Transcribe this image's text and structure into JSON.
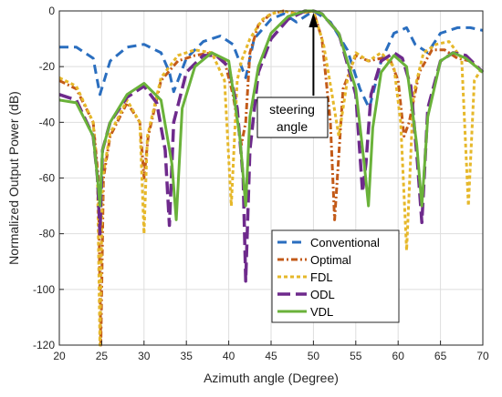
{
  "chart_data": {
    "type": "line",
    "title": "",
    "xlabel": "Azimuth angle (Degree)",
    "ylabel": "Normalized Output Power (dB)",
    "xlim": [
      20,
      70
    ],
    "ylim": [
      -120,
      0
    ],
    "xticks": [
      20,
      25,
      30,
      35,
      40,
      45,
      50,
      55,
      60,
      65,
      70
    ],
    "yticks": [
      0,
      -20,
      -40,
      -60,
      -80,
      -100,
      -120
    ],
    "grid": true,
    "legend_position": "lower-right",
    "annotation": {
      "lines": [
        "steering",
        "angle"
      ],
      "x": 50,
      "y": 0
    },
    "series": [
      {
        "name": "Conventional",
        "color": "#2a6ebf",
        "dash": "10,6",
        "width": 3,
        "x": [
          20,
          22,
          24,
          24.8,
          26,
          28,
          30,
          32,
          33,
          33.5,
          35,
          37,
          39,
          40.5,
          42,
          43,
          45,
          46.5,
          48,
          50,
          52,
          54,
          55.5,
          56.6,
          58,
          59.5,
          61,
          62,
          63.5,
          65,
          67,
          68.5,
          70
        ],
        "y": [
          -13,
          -13,
          -17,
          -30,
          -18,
          -13,
          -12,
          -15,
          -22,
          -29,
          -17,
          -11,
          -9,
          -12,
          -24,
          -10,
          -3,
          -1,
          -4,
          0,
          -4,
          -14,
          -28,
          -35,
          -18,
          -8,
          -6,
          -12,
          -15,
          -8,
          -6,
          -6,
          -7
        ]
      },
      {
        "name": "Optimal",
        "color": "#c35a18",
        "dash": "7,3,2,3",
        "width": 3,
        "x": [
          20,
          22,
          24,
          24.6,
          24.9,
          25.2,
          26,
          28,
          29.5,
          30,
          30.5,
          32,
          34,
          36,
          38,
          39.5,
          40.5,
          41.5,
          42,
          42.5,
          43.5,
          45,
          46.5,
          48,
          50,
          51,
          52,
          52.5,
          53.5,
          55,
          56.5,
          58,
          59,
          60,
          60.7,
          61.3,
          62.5,
          64,
          65.5,
          67,
          68.5,
          70
        ],
        "y": [
          -25,
          -28,
          -40,
          -60,
          -120,
          -60,
          -45,
          -33,
          -40,
          -60,
          -45,
          -25,
          -18,
          -16,
          -15,
          -18,
          -30,
          -48,
          -40,
          -15,
          -5,
          -1,
          0,
          -1,
          0,
          -10,
          -40,
          -75,
          -28,
          -16,
          -18,
          -17,
          -17,
          -25,
          -45,
          -40,
          -22,
          -14,
          -14,
          -17,
          -18,
          -22
        ]
      },
      {
        "name": "FDL",
        "color": "#e6b82a",
        "dash": "4,3",
        "width": 3,
        "x": [
          20,
          22,
          24,
          24.5,
          24.8,
          25.1,
          26,
          28,
          29.5,
          30,
          30.4,
          32,
          34,
          36,
          38,
          39.5,
          40.3,
          41,
          41.5,
          42.5,
          44,
          45,
          46.5,
          48,
          50,
          51.2,
          52.2,
          53,
          54,
          55,
          56.5,
          58,
          59.5,
          60.3,
          61,
          61.8,
          63,
          64.5,
          66,
          67.5,
          68.3,
          69,
          70
        ],
        "y": [
          -24,
          -27,
          -40,
          -60,
          -120,
          -60,
          -44,
          -32,
          -40,
          -80,
          -45,
          -24,
          -16,
          -14,
          -15,
          -25,
          -70,
          -25,
          -18,
          -10,
          -3,
          -1,
          0,
          -1,
          0,
          -12,
          -30,
          -45,
          -25,
          -15,
          -18,
          -15,
          -20,
          -40,
          -86,
          -30,
          -15,
          -12,
          -11,
          -17,
          -70,
          -25,
          -20
        ]
      },
      {
        "name": "ODL",
        "color": "#6e2a8c",
        "dash": "14,6",
        "width": 3.5,
        "x": [
          20,
          22,
          24,
          24.5,
          24.8,
          25.1,
          26,
          28,
          30,
          31.5,
          32.5,
          33,
          33.5,
          35,
          37,
          38.5,
          40,
          41,
          41.7,
          42,
          42.5,
          43.5,
          45,
          47,
          49,
          50,
          51,
          53,
          55,
          55.8,
          56.2,
          56.8,
          58,
          59.5,
          60.5,
          61.5,
          62.3,
          62.8,
          63.5,
          65,
          66.5,
          68,
          70
        ],
        "y": [
          -30,
          -32,
          -45,
          -60,
          -80,
          -50,
          -40,
          -31,
          -27,
          -33,
          -50,
          -77,
          -40,
          -22,
          -16,
          -16,
          -20,
          -35,
          -60,
          -97,
          -50,
          -22,
          -10,
          -3,
          0,
          0,
          -1,
          -8,
          -30,
          -65,
          -55,
          -30,
          -18,
          -15,
          -17,
          -27,
          -55,
          -76,
          -35,
          -18,
          -15,
          -16,
          -22
        ]
      },
      {
        "name": "VDL",
        "color": "#6ab23a",
        "dash": "",
        "width": 3,
        "x": [
          20,
          22,
          24,
          24.5,
          24.8,
          25.1,
          26,
          28,
          30,
          32,
          33.3,
          33.8,
          34.5,
          36,
          38,
          40,
          41.3,
          42,
          42.5,
          43.5,
          45,
          47,
          49,
          50,
          51,
          53,
          55,
          56,
          56.5,
          57,
          58,
          59.5,
          61,
          62.2,
          62.8,
          63.5,
          65,
          66.5,
          68,
          70
        ],
        "y": [
          -32,
          -33,
          -45,
          -60,
          -70,
          -50,
          -40,
          -30,
          -26,
          -32,
          -55,
          -75,
          -35,
          -20,
          -15,
          -18,
          -45,
          -70,
          -38,
          -20,
          -8,
          -2,
          0,
          0,
          -1,
          -8,
          -28,
          -55,
          -70,
          -42,
          -22,
          -16,
          -20,
          -48,
          -70,
          -38,
          -18,
          -15,
          -17,
          -22
        ]
      }
    ]
  }
}
